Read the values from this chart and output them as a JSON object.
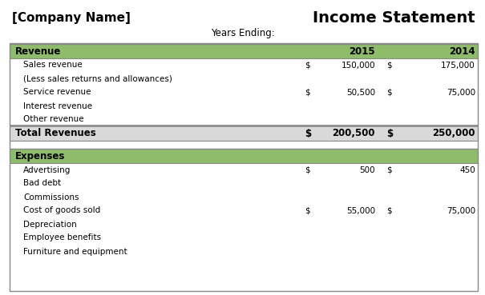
{
  "title_left": "[Company Name]",
  "title_right": "Income Statement",
  "subtitle": "Years Ending:",
  "col_year1": "2015",
  "col_year2": "2014",
  "green_color": "#8FBC6A",
  "light_gray": "#D9D9D9",
  "white": "#FFFFFF",
  "border_color": "#888888",
  "text_color": "#000000",
  "revenue_rows": [
    {
      "label": "Sales revenue",
      "dollar1": "$",
      "val1": "150,000",
      "dollar2": "$",
      "val2": "175,000"
    },
    {
      "label": "(Less sales returns and allowances)",
      "dollar1": "",
      "val1": "",
      "dollar2": "",
      "val2": ""
    },
    {
      "label": "Service revenue",
      "dollar1": "$",
      "val1": "50,500",
      "dollar2": "$",
      "val2": "75,000"
    },
    {
      "label": "Interest revenue",
      "dollar1": "",
      "val1": "",
      "dollar2": "",
      "val2": ""
    },
    {
      "label": "Other revenue",
      "dollar1": "",
      "val1": "",
      "dollar2": "",
      "val2": ""
    }
  ],
  "total_revenue": {
    "label": "Total Revenues",
    "dollar1": "$",
    "val1": "200,500",
    "dollar2": "$",
    "val2": "250,000"
  },
  "expense_rows": [
    {
      "label": "Advertising",
      "dollar1": "$",
      "val1": "500",
      "dollar2": "$",
      "val2": "450"
    },
    {
      "label": "Bad debt",
      "dollar1": "",
      "val1": "",
      "dollar2": "",
      "val2": ""
    },
    {
      "label": "Commissions",
      "dollar1": "",
      "val1": "",
      "dollar2": "",
      "val2": ""
    },
    {
      "label": "Cost of goods sold",
      "dollar1": "$",
      "val1": "55,000",
      "dollar2": "$",
      "val2": "75,000"
    },
    {
      "label": "Depreciation",
      "dollar1": "",
      "val1": "",
      "dollar2": "",
      "val2": ""
    },
    {
      "label": "Employee benefits",
      "dollar1": "",
      "val1": "",
      "dollar2": "",
      "val2": ""
    },
    {
      "label": "Furniture and equipment",
      "dollar1": "",
      "val1": "",
      "dollar2": "",
      "val2": ""
    }
  ],
  "fig_w": 6.05,
  "fig_h": 3.69,
  "dpi": 100
}
